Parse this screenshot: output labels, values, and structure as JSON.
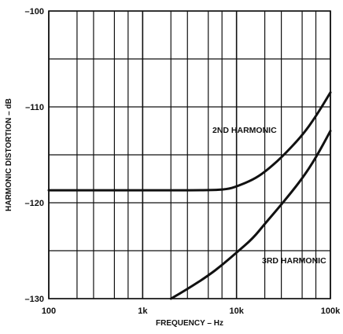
{
  "chart_data": {
    "type": "line",
    "title": "",
    "xlabel": "FREQUENCY – Hz",
    "ylabel": "HARMONIC DISTORTION – dB",
    "x_scale": "log",
    "xlim": [
      100,
      100000
    ],
    "ylim": [
      -130,
      -100
    ],
    "x_ticks": [
      100,
      1000,
      10000,
      100000
    ],
    "x_tick_labels": [
      "100",
      "1k",
      "10k",
      "100k"
    ],
    "y_ticks": [
      -100,
      -110,
      -120,
      -130
    ],
    "y_tick_labels": [
      "–100",
      "–110",
      "–120",
      "–130"
    ],
    "grid": true,
    "series": [
      {
        "name": "2ND HARMONIC",
        "x": [
          100,
          1000,
          5000,
          8000,
          10000,
          15000,
          20000,
          30000,
          50000,
          70000,
          100000
        ],
        "y": [
          -118.7,
          -118.7,
          -118.7,
          -118.6,
          -118.3,
          -117.6,
          -116.8,
          -115.3,
          -113.0,
          -111.0,
          -108.5
        ]
      },
      {
        "name": "3RD HARMONIC",
        "x": [
          2000,
          3000,
          5000,
          7000,
          10000,
          15000,
          20000,
          30000,
          50000,
          70000,
          100000
        ],
        "y": [
          -130,
          -129.0,
          -127.6,
          -126.5,
          -125.2,
          -123.7,
          -122.2,
          -120.2,
          -117.5,
          -115.3,
          -112.5
        ]
      }
    ],
    "annotations": [
      {
        "text": "2ND HARMONIC"
      },
      {
        "text": "3RD HARMONIC"
      }
    ]
  }
}
